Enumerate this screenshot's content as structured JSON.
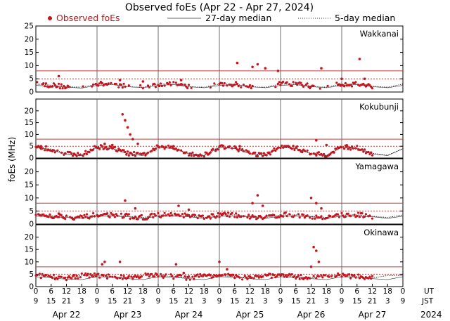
{
  "chart_data": {
    "type": "scatter",
    "title": "Observed foEs (Apr 22 - Apr 27, 2024)",
    "legend": [
      {
        "name": "Observed foEs",
        "style": "red-dot"
      },
      {
        "name": "27-day median",
        "style": "thin-solid"
      },
      {
        "name": "5-day median",
        "style": "dotted"
      }
    ],
    "ylabel": "foEs (MHz)",
    "ylim": [
      0,
      25
    ],
    "yticks": [
      0,
      5,
      10,
      15,
      20,
      25
    ],
    "yticks_lower": [
      0,
      5,
      10,
      15,
      20
    ],
    "xlim_hours": [
      0,
      144
    ],
    "ut_ticks": [
      "0",
      "6",
      "12",
      "18",
      "0",
      "6",
      "12",
      "18",
      "0",
      "6",
      "12",
      "18",
      "0",
      "6",
      "12",
      "18",
      "0",
      "6",
      "12",
      "18",
      "0",
      "6",
      "12",
      "18",
      "0"
    ],
    "jst_ticks": [
      "9",
      "15",
      "21",
      "3",
      "9",
      "15",
      "21",
      "3",
      "9",
      "15",
      "21",
      "3",
      "9",
      "15",
      "21",
      "3",
      "9",
      "15",
      "21",
      "3",
      "9",
      "15",
      "21",
      "3",
      "9"
    ],
    "ut_label": "UT",
    "jst_label": "JST",
    "dates": [
      "Apr 22",
      "Apr 23",
      "Apr 24",
      "Apr 25",
      "Apr 26",
      "Apr 27"
    ],
    "year": "2024",
    "thresholds_mhz": [
      5,
      8
    ],
    "panels": [
      {
        "station": "Wakkanai",
        "observed_peaks": [
          [
            9,
            6
          ],
          [
            33,
            4.5
          ],
          [
            42,
            4
          ],
          [
            57,
            4.5
          ],
          [
            79,
            11
          ],
          [
            85,
            9.5
          ],
          [
            87,
            10.5
          ],
          [
            90,
            9
          ],
          [
            95,
            8
          ],
          [
            112,
            9
          ],
          [
            120,
            5
          ],
          [
            127,
            12.5
          ],
          [
            129,
            5
          ]
        ],
        "median_27day": [
          [
            0,
            2.5
          ],
          [
            6,
            2.2
          ],
          [
            12,
            1.8
          ],
          [
            18,
            1.5
          ],
          [
            24,
            2.5
          ],
          [
            30,
            2.8
          ],
          [
            36,
            2
          ],
          [
            42,
            1.6
          ],
          [
            48,
            2.5
          ],
          [
            54,
            2.8
          ],
          [
            60,
            2
          ],
          [
            66,
            1.6
          ],
          [
            72,
            2.5
          ],
          [
            78,
            2.8
          ],
          [
            84,
            2
          ],
          [
            90,
            1.6
          ],
          [
            96,
            2.5
          ],
          [
            102,
            2.8
          ],
          [
            108,
            2
          ],
          [
            114,
            1.6
          ],
          [
            120,
            2.5
          ],
          [
            126,
            2.8
          ],
          [
            132,
            2
          ],
          [
            138,
            1.6
          ],
          [
            144,
            2.5
          ]
        ],
        "median_5day": [
          [
            0,
            3
          ],
          [
            6,
            2.6
          ],
          [
            12,
            2
          ],
          [
            18,
            1.8
          ],
          [
            24,
            3
          ],
          [
            30,
            3
          ],
          [
            36,
            2
          ],
          [
            42,
            1.8
          ],
          [
            48,
            3
          ],
          [
            54,
            3
          ],
          [
            60,
            2
          ],
          [
            66,
            1.8
          ],
          [
            72,
            3
          ],
          [
            78,
            3
          ],
          [
            84,
            2
          ],
          [
            90,
            1.8
          ],
          [
            96,
            3
          ],
          [
            102,
            3
          ],
          [
            108,
            2.2
          ],
          [
            114,
            1.8
          ],
          [
            120,
            3
          ],
          [
            126,
            3
          ],
          [
            132,
            2.2
          ],
          [
            138,
            1.8
          ],
          [
            144,
            3
          ]
        ]
      },
      {
        "station": "Kokubunji",
        "observed_peaks": [
          [
            2,
            5
          ],
          [
            27,
            6
          ],
          [
            30,
            5.5
          ],
          [
            34,
            18.5
          ],
          [
            35,
            16
          ],
          [
            36,
            13
          ],
          [
            37,
            10
          ],
          [
            38,
            8
          ],
          [
            40,
            6
          ],
          [
            54,
            5
          ],
          [
            80,
            5
          ],
          [
            98,
            5
          ],
          [
            110,
            7.5
          ],
          [
            114,
            5.5
          ],
          [
            122,
            5
          ]
        ],
        "median_27day": [
          [
            0,
            4.5
          ],
          [
            6,
            3.5
          ],
          [
            12,
            1.5
          ],
          [
            18,
            1
          ],
          [
            24,
            4.5
          ],
          [
            30,
            4
          ],
          [
            36,
            1.8
          ],
          [
            42,
            1
          ],
          [
            48,
            4.5
          ],
          [
            54,
            4
          ],
          [
            60,
            1.8
          ],
          [
            66,
            1
          ],
          [
            72,
            4.5
          ],
          [
            78,
            4
          ],
          [
            84,
            1.8
          ],
          [
            90,
            1
          ],
          [
            96,
            4.5
          ],
          [
            102,
            4
          ],
          [
            108,
            1.8
          ],
          [
            114,
            1
          ],
          [
            120,
            4.5
          ],
          [
            126,
            4
          ],
          [
            132,
            1.8
          ],
          [
            138,
            1
          ],
          [
            144,
            4
          ]
        ],
        "median_5day": [
          [
            0,
            4.8
          ],
          [
            6,
            3.8
          ],
          [
            12,
            1.8
          ],
          [
            18,
            1.2
          ],
          [
            24,
            4.8
          ],
          [
            30,
            4.2
          ],
          [
            36,
            2
          ],
          [
            42,
            1.2
          ],
          [
            48,
            4.8
          ],
          [
            54,
            4.2
          ],
          [
            60,
            2
          ],
          [
            66,
            1.2
          ],
          [
            72,
            4.8
          ],
          [
            78,
            4.2
          ],
          [
            84,
            2
          ],
          [
            90,
            1.2
          ],
          [
            96,
            4.8
          ],
          [
            102,
            4.2
          ],
          [
            108,
            2
          ],
          [
            114,
            1.2
          ],
          [
            120,
            4.8
          ],
          [
            126,
            4.2
          ],
          [
            132,
            2
          ],
          [
            138,
            1.2
          ],
          [
            144,
            4
          ]
        ]
      },
      {
        "station": "Yamagawa",
        "observed_peaks": [
          [
            9,
            4
          ],
          [
            35,
            9
          ],
          [
            39,
            6
          ],
          [
            56,
            7
          ],
          [
            60,
            5.5
          ],
          [
            85,
            8
          ],
          [
            87,
            11
          ],
          [
            89,
            7
          ],
          [
            108,
            10
          ],
          [
            110,
            8
          ],
          [
            112,
            6
          ]
        ],
        "median_27day": [
          [
            0,
            3
          ],
          [
            6,
            2.8
          ],
          [
            12,
            2.5
          ],
          [
            18,
            2.2
          ],
          [
            24,
            3
          ],
          [
            30,
            3
          ],
          [
            36,
            2.8
          ],
          [
            42,
            2.2
          ],
          [
            48,
            3
          ],
          [
            54,
            3
          ],
          [
            60,
            2.8
          ],
          [
            66,
            2.2
          ],
          [
            72,
            3
          ],
          [
            78,
            3
          ],
          [
            84,
            2.8
          ],
          [
            90,
            2.2
          ],
          [
            96,
            3
          ],
          [
            102,
            3
          ],
          [
            108,
            2.8
          ],
          [
            114,
            2.2
          ],
          [
            120,
            3
          ],
          [
            126,
            3
          ],
          [
            132,
            2.8
          ],
          [
            138,
            2.2
          ],
          [
            144,
            3
          ]
        ],
        "median_5day": [
          [
            0,
            3.5
          ],
          [
            6,
            3.2
          ],
          [
            12,
            2.8
          ],
          [
            18,
            2.5
          ],
          [
            24,
            3.5
          ],
          [
            30,
            3.5
          ],
          [
            36,
            3
          ],
          [
            42,
            2.5
          ],
          [
            48,
            3.5
          ],
          [
            54,
            3.5
          ],
          [
            60,
            3
          ],
          [
            66,
            2.5
          ],
          [
            72,
            3.5
          ],
          [
            78,
            3.5
          ],
          [
            84,
            3
          ],
          [
            90,
            2.5
          ],
          [
            96,
            3.5
          ],
          [
            102,
            3.5
          ],
          [
            108,
            3
          ],
          [
            114,
            2.5
          ],
          [
            120,
            3.5
          ],
          [
            126,
            3.5
          ],
          [
            132,
            3
          ],
          [
            138,
            2.5
          ],
          [
            144,
            3.5
          ]
        ]
      },
      {
        "station": "Okinawa",
        "observed_peaks": [
          [
            26,
            9
          ],
          [
            27,
            10
          ],
          [
            33,
            10
          ],
          [
            55,
            9
          ],
          [
            58,
            5.5
          ],
          [
            72,
            10
          ],
          [
            75,
            7
          ],
          [
            108,
            8
          ],
          [
            109,
            16
          ],
          [
            110,
            14.5
          ],
          [
            111,
            10
          ]
        ],
        "median_27day": [
          [
            0,
            4
          ],
          [
            6,
            3.5
          ],
          [
            12,
            3
          ],
          [
            18,
            2.8
          ],
          [
            24,
            4
          ],
          [
            30,
            3.8
          ],
          [
            36,
            3.2
          ],
          [
            42,
            2.8
          ],
          [
            48,
            4
          ],
          [
            54,
            3.8
          ],
          [
            60,
            3.2
          ],
          [
            66,
            2.8
          ],
          [
            72,
            4
          ],
          [
            78,
            3.8
          ],
          [
            84,
            3.2
          ],
          [
            90,
            2.8
          ],
          [
            96,
            4
          ],
          [
            102,
            3.8
          ],
          [
            108,
            3.2
          ],
          [
            114,
            2.8
          ],
          [
            120,
            4
          ],
          [
            126,
            3.8
          ],
          [
            132,
            3.2
          ],
          [
            138,
            2.8
          ],
          [
            144,
            4
          ]
        ],
        "median_5day": [
          [
            0,
            4.5
          ],
          [
            6,
            4
          ],
          [
            12,
            3.5
          ],
          [
            18,
            4.5
          ],
          [
            24,
            4.5
          ],
          [
            30,
            4
          ],
          [
            36,
            3.5
          ],
          [
            42,
            4.5
          ],
          [
            48,
            4.5
          ],
          [
            54,
            4
          ],
          [
            60,
            3.5
          ],
          [
            66,
            4.5
          ],
          [
            72,
            4.5
          ],
          [
            78,
            4
          ],
          [
            84,
            3.5
          ],
          [
            90,
            4.5
          ],
          [
            96,
            4.5
          ],
          [
            102,
            4
          ],
          [
            108,
            3.5
          ],
          [
            114,
            4.5
          ],
          [
            120,
            4.5
          ],
          [
            126,
            4
          ],
          [
            132,
            3.5
          ],
          [
            138,
            4.5
          ],
          [
            144,
            4.5
          ]
        ]
      }
    ]
  },
  "colors": {
    "observed": "#c8141e",
    "threshold": "#c83c3c",
    "frame": "#000000",
    "day_divider": "#6e6e6e",
    "median": "#333333"
  }
}
